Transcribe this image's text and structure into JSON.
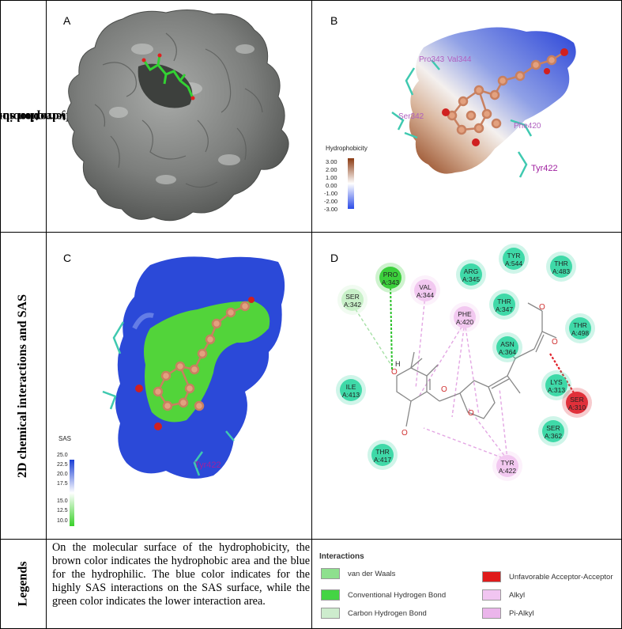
{
  "row_labels": {
    "row1": "Interaction surface and Hydrophobibcty",
    "row1_line1": "Interaction surface and",
    "row1_line2": "Hydrophobibcty",
    "row2": "2D chemical interactions and SAS",
    "row3": "Legends"
  },
  "panels": {
    "a": {
      "letter": "A"
    },
    "b": {
      "letter": "B",
      "residues": [
        "Pro343",
        "Val344",
        "Ser342",
        "Phe420",
        "Tyr422"
      ],
      "scale_title": "Hydrophobicity",
      "scale_ticks": [
        "3.00",
        "2.00",
        "1.00",
        "0.00",
        "-1.00",
        "-2.00",
        "-3.00"
      ],
      "scale_colors": {
        "top": "#8b3a12",
        "mid": "#ffffff",
        "bottom": "#2b4be8"
      }
    },
    "c": {
      "letter": "C",
      "residue": "Tyr422",
      "scale_title": "SAS",
      "scale_ticks": [
        "25.0",
        "22.5",
        "20.0",
        "17.5",
        "15.0",
        "12.5",
        "10.0"
      ],
      "scale_colors": {
        "top": "#1a3fd6",
        "mid": "#ffffff",
        "bottom": "#3ad12a"
      }
    },
    "d": {
      "letter": "D",
      "residues": [
        {
          "name": "SER",
          "id": "A:342",
          "kind": "carbon-hb",
          "color": "#c8f0c8"
        },
        {
          "name": "PRO",
          "id": "A:343",
          "kind": "conventional-hb",
          "color": "#3ccf3c"
        },
        {
          "name": "VAL",
          "id": "A:344",
          "kind": "alkyl",
          "color": "#f2c8f0"
        },
        {
          "name": "ARG",
          "id": "A:345",
          "kind": "vdw",
          "color": "#3fd9a8"
        },
        {
          "name": "TYR",
          "id": "A:544",
          "kind": "vdw",
          "color": "#3fd9a8"
        },
        {
          "name": "THR",
          "id": "A:483",
          "kind": "vdw",
          "color": "#3fd9a8"
        },
        {
          "name": "THR",
          "id": "A:347",
          "kind": "vdw",
          "color": "#3fd9a8"
        },
        {
          "name": "PHE",
          "id": "A:420",
          "kind": "pi-alkyl",
          "color": "#f2c8f0"
        },
        {
          "name": "THR",
          "id": "A:498",
          "kind": "vdw",
          "color": "#3fd9a8"
        },
        {
          "name": "ASN",
          "id": "A:364",
          "kind": "vdw",
          "color": "#3fd9a8"
        },
        {
          "name": "ILE",
          "id": "A:413",
          "kind": "vdw",
          "color": "#3fd9a8"
        },
        {
          "name": "LYS",
          "id": "A:313",
          "kind": "vdw",
          "color": "#3fd9a8"
        },
        {
          "name": "SER",
          "id": "A:310",
          "kind": "unfavorable",
          "color": "#e0303a"
        },
        {
          "name": "SER",
          "id": "A:362",
          "kind": "vdw",
          "color": "#3fd9a8"
        },
        {
          "name": "THR",
          "id": "A:417",
          "kind": "vdw",
          "color": "#3fd9a8"
        },
        {
          "name": "TYR",
          "id": "A:422",
          "kind": "alkyl",
          "color": "#f2c8f0"
        }
      ],
      "atom_labels": {
        "h": "H"
      }
    }
  },
  "legend_text": "On the molecular surface of the hydrophobicity, the brown color indicates the hydrophobic area and the blue for the hydrophilic. The blue color indicates for the highly SAS interactions on the SAS surface, while the green color indicates the lower interaction area.",
  "interactions": {
    "title": "Interactions",
    "items": [
      {
        "label": "van der Waals",
        "color": "#8ee08e"
      },
      {
        "label": "Conventional Hydrogen Bond",
        "color": "#44d444"
      },
      {
        "label": "Carbon Hydrogen Bond",
        "color": "#cdeccd"
      },
      {
        "label": "Unfavorable Acceptor-Acceptor",
        "color": "#e01b1b"
      },
      {
        "label": "Alkyl",
        "color": "#f1c5f1"
      },
      {
        "label": "Pi-Alkyl",
        "color": "#ebb5eb"
      }
    ]
  }
}
